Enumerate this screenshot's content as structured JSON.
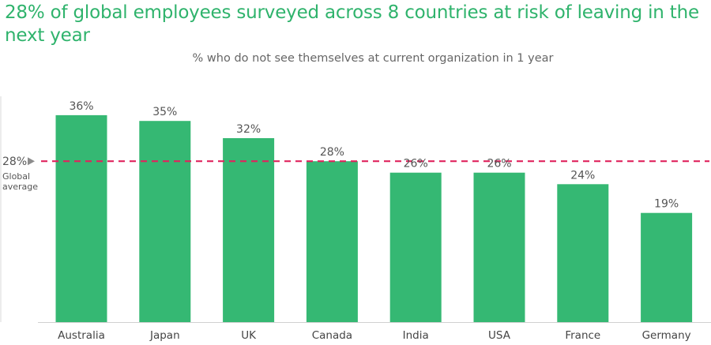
{
  "chart_data": {
    "type": "bar",
    "title": "28% of global employees surveyed across 8 countries at risk of leaving in the next year",
    "subtitle": "% who do not see themselves at current organization in 1 year",
    "categories": [
      "Australia",
      "Japan",
      "UK",
      "Canada",
      "India",
      "USA",
      "France",
      "Germany"
    ],
    "values": [
      36,
      35,
      32,
      28,
      26,
      26,
      24,
      19
    ],
    "value_labels": [
      "36%",
      "35%",
      "32%",
      "28%",
      "26%",
      "26%",
      "24%",
      "19%"
    ],
    "ylim": [
      0,
      40
    ],
    "grid": false,
    "reference_line": {
      "value": 28,
      "label": "28%",
      "sublabel_lines": [
        "Global",
        "average"
      ],
      "color": "#e0245e",
      "style": "dashed"
    },
    "colors": {
      "bar": "#35b873",
      "title": "#2fb36c"
    }
  }
}
